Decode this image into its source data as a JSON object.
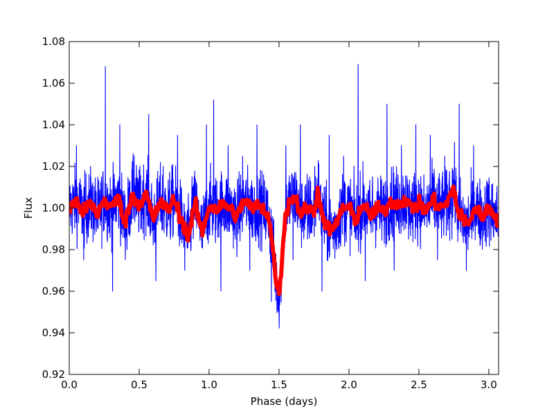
{
  "chart_data": {
    "type": "line",
    "title": "",
    "xlabel": "Phase (days)",
    "ylabel": "Flux",
    "xlim": [
      0.0,
      3.07
    ],
    "ylim": [
      0.92,
      1.08
    ],
    "x_ticks": [
      0.0,
      0.5,
      1.0,
      1.5,
      2.0,
      2.5,
      3.0
    ],
    "x_tick_labels": [
      "0.0",
      "0.5",
      "1.0",
      "1.5",
      "2.0",
      "2.5",
      "3.0"
    ],
    "y_ticks": [
      0.92,
      0.94,
      0.96,
      0.98,
      1.0,
      1.02,
      1.04,
      1.06,
      1.08
    ],
    "y_tick_labels": [
      "0.92",
      "0.94",
      "0.96",
      "0.98",
      "1.00",
      "1.02",
      "1.04",
      "1.06",
      "1.08"
    ],
    "grid": false,
    "legend": "none",
    "series": [
      {
        "color": "#0000ff",
        "style": "raw light curve, noisy, sigma about 0.012",
        "x": [
          0.0,
          0.05,
          0.1,
          0.15,
          0.2,
          0.25,
          0.3,
          0.35,
          0.4,
          0.45,
          0.5,
          0.55,
          0.6,
          0.65,
          0.7,
          0.75,
          0.8,
          0.85,
          0.9,
          0.95,
          1.0,
          1.05,
          1.1,
          1.15,
          1.2,
          1.25,
          1.3,
          1.35,
          1.4,
          1.45,
          1.5,
          1.55,
          1.6,
          1.65,
          1.7,
          1.75,
          1.8,
          1.85,
          1.9,
          1.95,
          2.0,
          2.05,
          2.1,
          2.15,
          2.2,
          2.25,
          2.3,
          2.35,
          2.4,
          2.45,
          2.5,
          2.55,
          2.6,
          2.65,
          2.7,
          2.75,
          2.8,
          2.85,
          2.9,
          2.95,
          3.0,
          3.07
        ],
        "y": [
          1.003,
          1.03,
          0.975,
          1.015,
          0.99,
          1.068,
          0.96,
          1.04,
          0.98,
          1.025,
          0.99,
          1.045,
          0.965,
          1.02,
          0.985,
          1.035,
          0.97,
          1.015,
          0.99,
          1.04,
          0.995,
          1.052,
          0.96,
          1.03,
          0.985,
          1.025,
          0.97,
          1.04,
          0.99,
          0.955,
          0.95,
          1.03,
          0.975,
          1.04,
          0.985,
          1.02,
          0.96,
          1.035,
          0.98,
          1.025,
          0.99,
          1.069,
          0.965,
          1.015,
          0.99,
          1.05,
          0.97,
          1.03,
          0.985,
          1.04,
          0.995,
          1.035,
          0.975,
          1.025,
          0.985,
          1.05,
          0.97,
          1.03,
          0.985,
          1.025,
          0.99,
          0.995
        ]
      },
      {
        "color": "#ff0000",
        "style": "smoothed light curve, thick",
        "x": [
          0.0,
          0.05,
          0.1,
          0.15,
          0.2,
          0.25,
          0.3,
          0.35,
          0.4,
          0.45,
          0.5,
          0.55,
          0.6,
          0.65,
          0.7,
          0.75,
          0.8,
          0.85,
          0.9,
          0.95,
          1.0,
          1.05,
          1.1,
          1.15,
          1.2,
          1.25,
          1.3,
          1.35,
          1.4,
          1.42,
          1.45,
          1.47,
          1.49,
          1.5,
          1.51,
          1.53,
          1.55,
          1.58,
          1.62,
          1.65,
          1.7,
          1.75,
          1.78,
          1.8,
          1.85,
          1.9,
          1.95,
          2.0,
          2.05,
          2.1,
          2.15,
          2.2,
          2.25,
          2.3,
          2.35,
          2.4,
          2.45,
          2.5,
          2.55,
          2.6,
          2.65,
          2.7,
          2.75,
          2.78,
          2.8,
          2.85,
          2.9,
          2.95,
          3.0,
          3.07
        ],
        "y": [
          1.0,
          1.003,
          0.998,
          1.002,
          0.997,
          1.004,
          1.0,
          1.005,
          0.993,
          1.006,
          1.002,
          1.007,
          0.994,
          1.003,
          0.999,
          1.004,
          0.995,
          0.986,
          1.002,
          0.988,
          1.001,
          0.999,
          1.002,
          1.0,
          0.996,
          1.004,
          1.0,
          1.001,
          0.999,
          0.997,
          0.985,
          0.97,
          0.962,
          0.958,
          0.965,
          0.985,
          0.998,
          1.004,
          1.005,
          0.997,
          1.0,
          0.998,
          1.01,
          0.998,
          0.99,
          0.99,
          1.0,
          1.0,
          0.994,
          1.002,
          0.996,
          1.0,
          0.998,
          1.003,
          1.002,
          1.004,
          1.0,
          1.002,
          0.998,
          1.004,
          1.0,
          1.002,
          1.01,
          0.997,
          0.996,
          0.992,
          1.0,
          0.996,
          1.0,
          0.994
        ]
      }
    ]
  }
}
